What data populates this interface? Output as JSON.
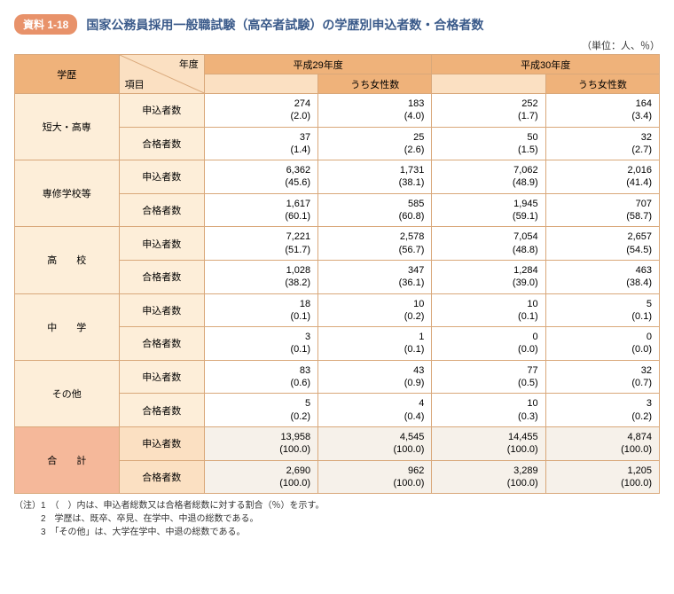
{
  "badge": "資料 1-18",
  "title": "国家公務員採用一般職試験（高卒者試験）の学歴別申込者数・合格者数",
  "unit": "（単位：人、％）",
  "columns": {
    "edu": "学歴",
    "year": "年度",
    "item": "項目",
    "h29": "平成29年度",
    "h30": "平成30年度",
    "female": "うち女性数"
  },
  "items": {
    "applicants": "申込者数",
    "passers": "合格者数"
  },
  "rows": [
    {
      "label": "短大・高専",
      "applicants": {
        "h29": "274\n(2.0)",
        "h29f": "183\n(4.0)",
        "h30": "252\n(1.7)",
        "h30f": "164\n(3.4)"
      },
      "passers": {
        "h29": "37\n(1.4)",
        "h29f": "25\n(2.6)",
        "h30": "50\n(1.5)",
        "h30f": "32\n(2.7)"
      }
    },
    {
      "label": "専修学校等",
      "applicants": {
        "h29": "6,362\n(45.6)",
        "h29f": "1,731\n(38.1)",
        "h30": "7,062\n(48.9)",
        "h30f": "2,016\n(41.4)"
      },
      "passers": {
        "h29": "1,617\n(60.1)",
        "h29f": "585\n(60.8)",
        "h30": "1,945\n(59.1)",
        "h30f": "707\n(58.7)"
      }
    },
    {
      "label": "高　　校",
      "applicants": {
        "h29": "7,221\n(51.7)",
        "h29f": "2,578\n(56.7)",
        "h30": "7,054\n(48.8)",
        "h30f": "2,657\n(54.5)"
      },
      "passers": {
        "h29": "1,028\n(38.2)",
        "h29f": "347\n(36.1)",
        "h30": "1,284\n(39.0)",
        "h30f": "463\n(38.4)"
      }
    },
    {
      "label": "中　　学",
      "applicants": {
        "h29": "18\n(0.1)",
        "h29f": "10\n(0.2)",
        "h30": "10\n(0.1)",
        "h30f": "5\n(0.1)"
      },
      "passers": {
        "h29": "3\n(0.1)",
        "h29f": "1\n(0.1)",
        "h30": "0\n(0.0)",
        "h30f": "0\n(0.0)"
      }
    },
    {
      "label": "その他",
      "applicants": {
        "h29": "83\n(0.6)",
        "h29f": "43\n(0.9)",
        "h30": "77\n(0.5)",
        "h30f": "32\n(0.7)"
      },
      "passers": {
        "h29": "5\n(0.2)",
        "h29f": "4\n(0.4)",
        "h30": "10\n(0.3)",
        "h30f": "3\n(0.2)"
      }
    }
  ],
  "total": {
    "label": "合　　計",
    "applicants": {
      "h29": "13,958\n(100.0)",
      "h29f": "4,545\n(100.0)",
      "h30": "14,455\n(100.0)",
      "h30f": "4,874\n(100.0)"
    },
    "passers": {
      "h29": "2,690\n(100.0)",
      "h29f": "962\n(100.0)",
      "h30": "3,289\n(100.0)",
      "h30f": "1,205\n(100.0)"
    }
  },
  "notes": {
    "prefix": "（注）",
    "lines": [
      "1　（　）内は、申込者総数又は合格者総数に対する割合（％）を示す。",
      "2　学歴は、既卒、卒見、在学中、中退の総数である。",
      "3　「その他」は、大学在学中、中退の総数である。"
    ]
  },
  "style": {
    "border_color": "#d9a87a",
    "badge_bg": "#e8926a",
    "title_color": "#3a5a8a",
    "header_dark": "#efb27a",
    "header_light": "#fbe0c2",
    "row_label_bg": "#fdeed9",
    "total_label_bg": "#f5b89a",
    "total_sub_bg": "#fbe0c2",
    "total_val_bg": "#f6f1ea",
    "font_size_body": 11,
    "font_size_notes": 10
  }
}
